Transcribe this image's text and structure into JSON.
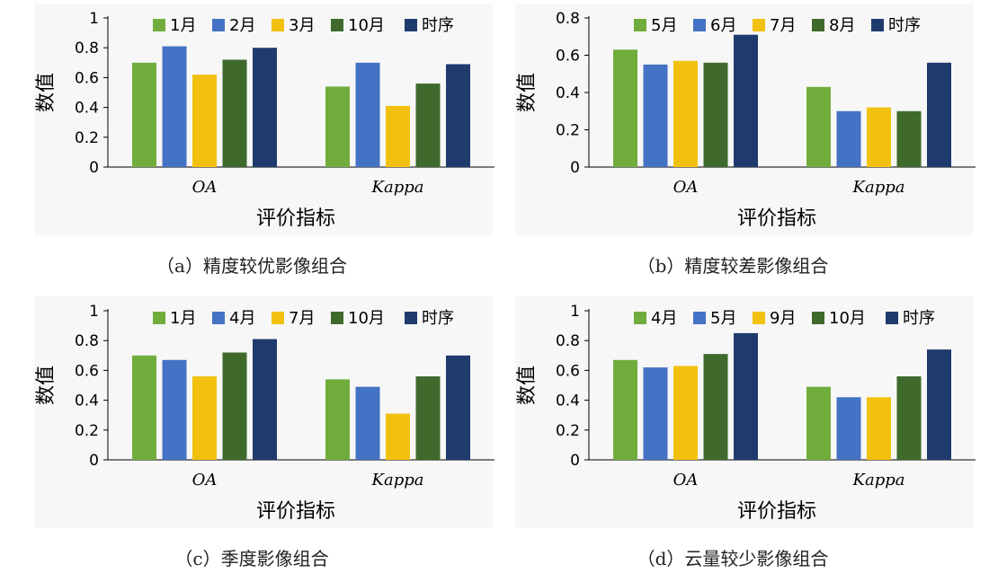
{
  "colors": {
    "green": "#70ad3d",
    "blue": "#4472c4",
    "yellow": "#f2c10f",
    "dark_green": "#3f6a2c",
    "navy": "#1f3b6e"
  },
  "captions": [
    "（a）精度较优影像组合",
    "（b）精度较差影像组合",
    "（c）季度影像组合",
    "（d）云量较少影像组合"
  ],
  "chart_data": [
    {
      "type": "bar",
      "ylabel": "数值",
      "xlabel": "评价指标",
      "categories": [
        "OA",
        "Kappa"
      ],
      "ylim": [
        0,
        1
      ],
      "yticks": [
        "0",
        "0.2",
        "0.4",
        "0.6",
        "0.8",
        "1"
      ],
      "legend_position": "top",
      "series": [
        {
          "name": "1月",
          "color": "#70ad3d",
          "values": [
            0.7,
            0.54
          ]
        },
        {
          "name": "2月",
          "color": "#4472c4",
          "values": [
            0.81,
            0.7
          ]
        },
        {
          "name": "3月",
          "color": "#f2c10f",
          "values": [
            0.62,
            0.41
          ]
        },
        {
          "name": "10月",
          "color": "#3f6a2c",
          "values": [
            0.72,
            0.56
          ]
        },
        {
          "name": "时序",
          "color": "#1f3b6e",
          "values": [
            0.8,
            0.69
          ]
        }
      ]
    },
    {
      "type": "bar",
      "ylabel": "数值",
      "xlabel": "评价指标",
      "categories": [
        "OA",
        "Kappa"
      ],
      "ylim": [
        0,
        0.8
      ],
      "yticks": [
        "0",
        "0.2",
        "0.4",
        "0.6",
        "0.8"
      ],
      "legend_position": "top",
      "series": [
        {
          "name": "5月",
          "color": "#70ad3d",
          "values": [
            0.63,
            0.43
          ]
        },
        {
          "name": "6月",
          "color": "#4472c4",
          "values": [
            0.55,
            0.3
          ]
        },
        {
          "name": "7月",
          "color": "#f2c10f",
          "values": [
            0.57,
            0.32
          ]
        },
        {
          "name": "8月",
          "color": "#3f6a2c",
          "values": [
            0.56,
            0.3
          ]
        },
        {
          "name": "时序",
          "color": "#1f3b6e",
          "values": [
            0.71,
            0.56
          ]
        }
      ]
    },
    {
      "type": "bar",
      "ylabel": "数值",
      "xlabel": "评价指标",
      "categories": [
        "OA",
        "Kappa"
      ],
      "ylim": [
        0,
        1
      ],
      "yticks": [
        "0",
        "0.2",
        "0.4",
        "0.6",
        "0.8",
        "1"
      ],
      "legend_position": "top",
      "series": [
        {
          "name": "1月",
          "color": "#70ad3d",
          "values": [
            0.7,
            0.54
          ]
        },
        {
          "name": "4月",
          "color": "#4472c4",
          "values": [
            0.67,
            0.49
          ]
        },
        {
          "name": "7月",
          "color": "#f2c10f",
          "values": [
            0.56,
            0.31
          ]
        },
        {
          "name": "10月",
          "color": "#3f6a2c",
          "values": [
            0.72,
            0.56
          ]
        },
        {
          "name": "时序",
          "color": "#1f3b6e",
          "values": [
            0.81,
            0.7
          ]
        }
      ]
    },
    {
      "type": "bar",
      "ylabel": "数值",
      "xlabel": "评价指标",
      "categories": [
        "OA",
        "Kappa"
      ],
      "ylim": [
        0,
        1
      ],
      "yticks": [
        "0",
        "0.2",
        "0.4",
        "0.6",
        "0.8",
        "1"
      ],
      "legend_position": "top",
      "series": [
        {
          "name": "4月",
          "color": "#70ad3d",
          "values": [
            0.67,
            0.49
          ]
        },
        {
          "name": "5月",
          "color": "#4472c4",
          "values": [
            0.62,
            0.42
          ]
        },
        {
          "name": "9月",
          "color": "#f2c10f",
          "values": [
            0.63,
            0.42
          ]
        },
        {
          "name": "10月",
          "color": "#3f6a2c",
          "values": [
            0.71,
            0.56
          ]
        },
        {
          "name": "时序",
          "color": "#1f3b6e",
          "values": [
            0.85,
            0.74
          ]
        }
      ]
    }
  ]
}
